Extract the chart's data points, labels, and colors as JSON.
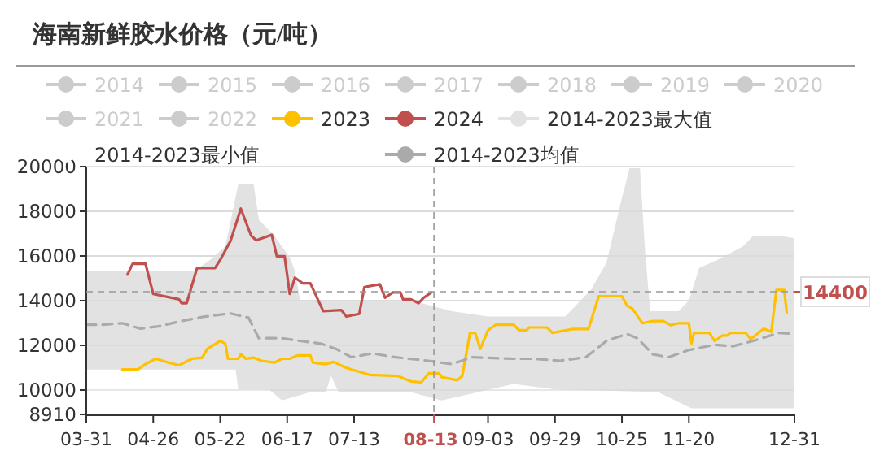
{
  "chart_data": {
    "type": "line",
    "title": "海南新鲜胶水价格（元/吨）",
    "xlim": [
      "--03-31",
      "--12-31"
    ],
    "xticks": [
      {
        "value": "--03-31",
        "label": "03-31"
      },
      {
        "value": "--04-26",
        "label": "04-26"
      },
      {
        "value": "--05-22",
        "label": "05-22"
      },
      {
        "value": "--06-17",
        "label": "06-17"
      },
      {
        "value": "--07-13",
        "label": "07-13"
      },
      {
        "value": "--09-03",
        "label": "09-03"
      },
      {
        "value": "--09-29",
        "label": "09-29"
      },
      {
        "value": "--10-25",
        "label": "10-25"
      },
      {
        "value": "--11-20",
        "label": "11-20"
      },
      {
        "value": "--12-31",
        "label": "12-31"
      }
    ],
    "ylim": [
      8910,
      20000
    ],
    "yticks": [
      8910,
      10000,
      12000,
      14000,
      16000,
      18000,
      20000
    ],
    "grid": "y",
    "legend": "top",
    "ref_lines": [
      {
        "axis": "x",
        "value": "--08-13",
        "label": "08-13"
      },
      {
        "axis": "y",
        "value": 14400,
        "label": "14400"
      }
    ],
    "series": [
      {
        "name": "2014",
        "color": "#cccccc"
      },
      {
        "name": "2015",
        "color": "#cccccc"
      },
      {
        "name": "2016",
        "color": "#cccccc"
      },
      {
        "name": "2017",
        "color": "#cccccc"
      },
      {
        "name": "2018",
        "color": "#cccccc"
      },
      {
        "name": "2019",
        "color": "#cccccc"
      },
      {
        "name": "2020",
        "color": "#cccccc"
      },
      {
        "name": "2021",
        "color": "#cccccc"
      },
      {
        "name": "2022",
        "color": "#cccccc"
      },
      {
        "name": "2023",
        "color": "#ffc000",
        "x": [
          "--04-14",
          "--04-20",
          "--04-23",
          "--04-27",
          "--05-02",
          "--05-06",
          "--05-11",
          "--05-15",
          "--05-17",
          "--05-22",
          "--05-24",
          "--05-25",
          "--05-29",
          "--05-30",
          "--06-01",
          "--06-04",
          "--06-07",
          "--06-12",
          "--06-15",
          "--06-18",
          "--06-21",
          "--06-26",
          "--06-27",
          "--07-02",
          "--07-05",
          "--07-10",
          "--07-19",
          "--07-30",
          "--08-04",
          "--08-08",
          "--08-11",
          "--08-15",
          "--08-16",
          "--08-22",
          "--08-24",
          "--08-27",
          "--08-29",
          "--08-31",
          "--09-03",
          "--09-06",
          "--09-13",
          "--09-15",
          "--09-18",
          "--09-19",
          "--09-26",
          "--09-28",
          "--10-06",
          "--10-12",
          "--10-16",
          "--10-25",
          "--10-27",
          "--10-29",
          "--11-02",
          "--11-06",
          "--11-10",
          "--11-13",
          "--11-16",
          "--11-20",
          "--11-21",
          "--11-22",
          "--11-28",
          "--11-30",
          "--12-03",
          "--12-05",
          "--12-06",
          "--12-12",
          "--12-14",
          "--12-19",
          "--12-22",
          "--12-24",
          "--12-27",
          "--12-28"
        ],
        "values": [
          10920,
          10920,
          11160,
          11400,
          11230,
          11110,
          11400,
          11450,
          11840,
          12200,
          12080,
          11400,
          11400,
          11600,
          11400,
          11450,
          11310,
          11230,
          11400,
          11400,
          11550,
          11550,
          11230,
          11160,
          11260,
          10990,
          10680,
          10630,
          10390,
          10340,
          10750,
          10750,
          10580,
          10440,
          10630,
          12560,
          12560,
          11840,
          12680,
          12920,
          12920,
          12680,
          12680,
          12800,
          12800,
          12560,
          12730,
          12730,
          14200,
          14200,
          13770,
          13650,
          12990,
          13090,
          13090,
          12900,
          12990,
          12990,
          12080,
          12560,
          12560,
          12200,
          12440,
          12440,
          12560,
          12560,
          12270,
          12750,
          12610,
          14480,
          14480,
          13470
        ]
      },
      {
        "name": "2024",
        "color": "#c0504d",
        "x": [
          "--04-16",
          "--04-18",
          "--04-23",
          "--04-26",
          "--05-06",
          "--05-07",
          "--05-09",
          "--05-13",
          "--05-20",
          "--05-22",
          "--05-26",
          "--05-28",
          "--05-30",
          "--06-01",
          "--06-03",
          "--06-05",
          "--06-11",
          "--06-13",
          "--06-16",
          "--06-18",
          "--06-20",
          "--06-23",
          "--06-26",
          "--07-01",
          "--07-08",
          "--07-10",
          "--07-15",
          "--07-17",
          "--07-23",
          "--07-25",
          "--07-28",
          "--07-31",
          "--08-01",
          "--08-04",
          "--08-07",
          "--08-09",
          "--08-12"
        ],
        "values": [
          15170,
          15650,
          15650,
          14300,
          14060,
          13890,
          13890,
          15460,
          15460,
          15820,
          16670,
          17390,
          18120,
          17510,
          16910,
          16700,
          16950,
          15990,
          15990,
          14300,
          15030,
          14780,
          14780,
          13530,
          13580,
          13290,
          13410,
          14610,
          14730,
          14130,
          14370,
          14370,
          14060,
          14060,
          13890,
          14130,
          14370
        ]
      },
      {
        "name": "2014-2023最大值",
        "type": "area",
        "color": "#e2e2e2",
        "x": [
          "--03-31",
          "--05-12",
          "--05-18",
          "--05-24",
          "--05-29",
          "--06-04",
          "--06-06",
          "--06-12",
          "--06-18",
          "--06-20",
          "--06-22",
          "--08-04",
          "--08-20",
          "--09-03",
          "--10-03",
          "--10-13",
          "--10-19",
          "--10-25",
          "--10-28",
          "--11-01",
          "--11-03",
          "--11-05",
          "--11-16",
          "--11-20",
          "--11-24",
          "--12-01",
          "--12-11",
          "--12-15",
          "--12-25",
          "--12-31"
        ],
        "values": [
          15340,
          15340,
          15820,
          16430,
          19200,
          19200,
          17630,
          16910,
          15940,
          15340,
          14010,
          14010,
          13530,
          13290,
          13290,
          14490,
          15700,
          18600,
          19930,
          19930,
          16180,
          13530,
          13530,
          14010,
          15460,
          15820,
          16430,
          16910,
          16910,
          16790
        ]
      },
      {
        "name": "2014-2023最小值",
        "type": "area",
        "color": "#ffffff",
        "x": [
          "--03-31",
          "--05-28",
          "--05-29",
          "--06-10",
          "--06-15",
          "--06-26",
          "--07-02",
          "--07-04",
          "--07-07",
          "--08-04",
          "--08-16",
          "--09-13",
          "--09-29",
          "--11-08",
          "--11-21",
          "--12-31"
        ],
        "values": [
          10920,
          10920,
          10030,
          10030,
          9540,
          9910,
          9910,
          10630,
          9910,
          9910,
          9540,
          10270,
          10030,
          9910,
          9180,
          9180
        ]
      },
      {
        "name": "2014-2023均值",
        "color": "#aaaaaa",
        "line_style": "dashed",
        "x": [
          "--03-31",
          "--04-06",
          "--04-14",
          "--04-21",
          "--04-28",
          "--05-07",
          "--05-16",
          "--05-26",
          "--06-02",
          "--06-06",
          "--06-15",
          "--06-22",
          "--06-30",
          "--07-06",
          "--07-12",
          "--07-20",
          "--07-29",
          "--08-08",
          "--08-20",
          "--08-28",
          "--09-13",
          "--09-21",
          "--10-01",
          "--10-11",
          "--10-19",
          "--10-27",
          "--10-31",
          "--11-06",
          "--11-12",
          "--11-20",
          "--11-30",
          "--12-07",
          "--12-15",
          "--12-25",
          "--12-31"
        ],
        "values": [
          12920,
          12920,
          12990,
          12750,
          12850,
          13090,
          13290,
          13430,
          13240,
          12320,
          12320,
          12200,
          12080,
          11840,
          11470,
          11640,
          11470,
          11350,
          11160,
          11470,
          11400,
          11400,
          11310,
          11470,
          12200,
          12510,
          12320,
          11600,
          11470,
          11790,
          12030,
          11960,
          12200,
          12560,
          12510
        ]
      }
    ]
  }
}
